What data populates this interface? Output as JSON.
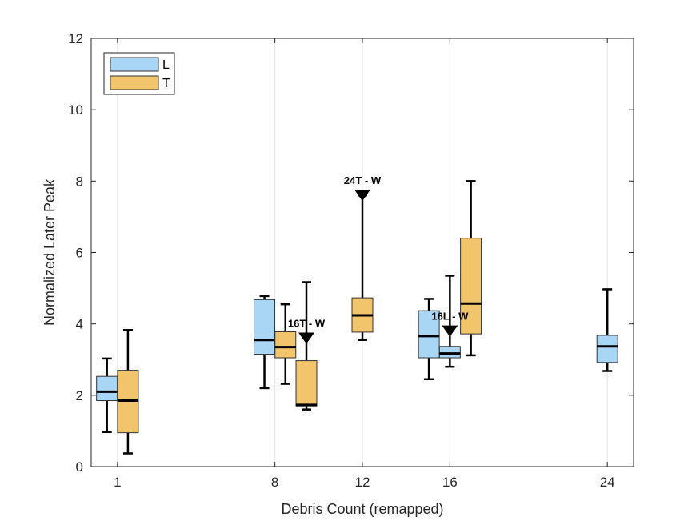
{
  "chart_data": {
    "type": "boxplot",
    "xlabel": "Debris Count (remapped)",
    "ylabel": "Normalized Later Peak",
    "xlim": [
      -1.5,
      29.5
    ],
    "ylim": [
      0,
      12
    ],
    "yticks": [
      0,
      2,
      4,
      6,
      8,
      10,
      12
    ],
    "xtick_positions": [
      0,
      9,
      14,
      19,
      28
    ],
    "xtick_labels": [
      "1",
      "8",
      "12",
      "16",
      "24"
    ],
    "grid": "vertical",
    "legend": {
      "location": "top-left",
      "entries": [
        {
          "label": "L",
          "color": "#a9d6f5"
        },
        {
          "label": "T",
          "color": "#f2c46c"
        }
      ]
    },
    "series_colors": {
      "L": "#a9d6f5",
      "T": "#f2c46c"
    },
    "boxes": [
      {
        "series": "L",
        "x": -0.6,
        "whisker_low": 0.97,
        "q1": 1.85,
        "median": 2.1,
        "q3": 2.53,
        "whisker_high": 3.03
      },
      {
        "series": "T",
        "x": 0.6,
        "whisker_low": 0.37,
        "q1": 0.95,
        "median": 1.85,
        "q3": 2.7,
        "whisker_high": 3.83
      },
      {
        "series": "L",
        "x": 8.4,
        "whisker_low": 2.2,
        "q1": 3.15,
        "median": 3.55,
        "q3": 4.68,
        "whisker_high": 4.78
      },
      {
        "series": "T",
        "x": 9.6,
        "whisker_low": 2.32,
        "q1": 3.05,
        "median": 3.35,
        "q3": 3.78,
        "whisker_high": 4.55
      },
      {
        "series": "T",
        "x": 10.8,
        "whisker_low": 1.6,
        "q1": 1.7,
        "median": 1.73,
        "q3": 2.97,
        "whisker_high": 5.17
      },
      {
        "series": "T",
        "x": 14.0,
        "whisker_low": 3.55,
        "q1": 3.77,
        "median": 4.24,
        "q3": 4.73,
        "whisker_high": 7.6
      },
      {
        "series": "L",
        "x": 17.8,
        "whisker_low": 2.45,
        "q1": 3.05,
        "median": 3.66,
        "q3": 4.37,
        "whisker_high": 4.7
      },
      {
        "series": "L",
        "x": 19.0,
        "whisker_low": 2.8,
        "q1": 3.05,
        "median": 3.17,
        "q3": 3.37,
        "whisker_high": 5.35
      },
      {
        "series": "T",
        "x": 20.2,
        "whisker_low": 3.12,
        "q1": 3.72,
        "median": 4.57,
        "q3": 6.4,
        "whisker_high": 8.0
      },
      {
        "series": "L",
        "x": 28.0,
        "whisker_low": 2.68,
        "q1": 2.92,
        "median": 3.37,
        "q3": 3.68,
        "whisker_high": 4.97
      }
    ],
    "annotations": [
      {
        "text": "16T - W",
        "marker_x": 10.8,
        "marker_y": 3.6
      },
      {
        "text": "24T - W",
        "marker_x": 14.0,
        "marker_y": 7.6
      },
      {
        "text": "16L - W",
        "marker_x": 19.0,
        "marker_y": 3.8
      }
    ]
  }
}
